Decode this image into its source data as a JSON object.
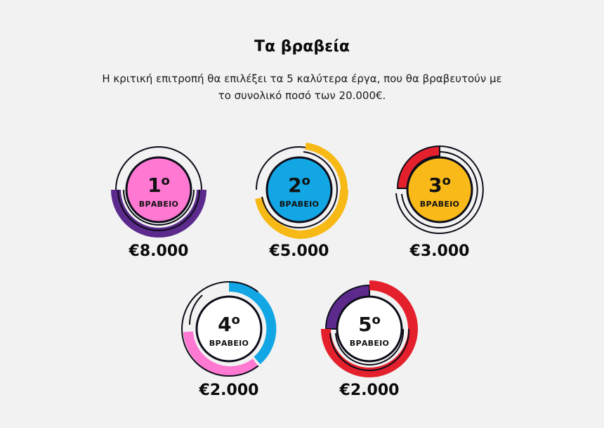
{
  "section": {
    "title": "Τα βραβεία",
    "subtitle": "Η κριτική επιτροπή θα επιλέξει τα 5 καλύτερα έργα, που θα βραβευτούν με το συνολικό ποσό των 20.000€."
  },
  "prizes": [
    {
      "rank": "1",
      "ordinal": "ο",
      "label": "ΒΡΑΒΕΙΟ",
      "amount": "€8.000",
      "fill": "#ff78d2",
      "accent": "#5b2a8c"
    },
    {
      "rank": "2",
      "ordinal": "ο",
      "label": "ΒΡΑΒΕΙΟ",
      "amount": "€5.000",
      "fill": "#12a6e4",
      "accent": "#f7b916"
    },
    {
      "rank": "3",
      "ordinal": "ο",
      "label": "ΒΡΑΒΕΙΟ",
      "amount": "€3.000",
      "fill": "#f9b918",
      "accent": "#e3202c"
    },
    {
      "rank": "4",
      "ordinal": "ο",
      "label": "ΒΡΑΒΕΙΟ",
      "amount": "€2.000",
      "fill": "#ffffff",
      "accent": "#12a6e4",
      "accent2": "#ff78d2"
    },
    {
      "rank": "5",
      "ordinal": "ο",
      "label": "ΒΡΑΒΕΙΟ",
      "amount": "€2.000",
      "fill": "#ffffff",
      "accent": "#e3202c",
      "accent2": "#5b2a8c"
    }
  ]
}
